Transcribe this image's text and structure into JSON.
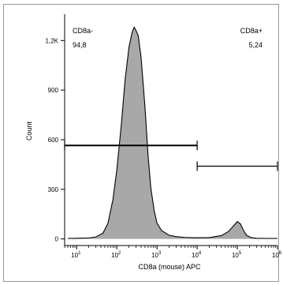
{
  "chart_data": {
    "type": "area",
    "xlabel": "CD8a (mouse) APC",
    "ylabel": "Count",
    "x_scale": "log",
    "xlim": [
      5,
      1000000
    ],
    "ylim": [
      -40,
      1340
    ],
    "x_ticks": [
      {
        "base": "10",
        "exp": "1",
        "value": 10
      },
      {
        "base": "10",
        "exp": "2",
        "value": 100
      },
      {
        "base": "10",
        "exp": "3",
        "value": 1000
      },
      {
        "base": "10",
        "exp": "4",
        "value": 10000
      },
      {
        "base": "10",
        "exp": "5",
        "value": 100000
      },
      {
        "base": "10",
        "exp": "6",
        "value": 1000000
      }
    ],
    "y_ticks": [
      {
        "label": "0",
        "value": 0
      },
      {
        "label": "300",
        "value": 300
      },
      {
        "label": "600",
        "value": 600
      },
      {
        "label": "900",
        "value": 900
      },
      {
        "label": "1,2K",
        "value": 1200
      }
    ],
    "series": [
      {
        "fill": "#a8a8a8",
        "stroke": "#000000",
        "points": [
          [
            6,
            3
          ],
          [
            10,
            4
          ],
          [
            20,
            6
          ],
          [
            30,
            12
          ],
          [
            45,
            35
          ],
          [
            60,
            95
          ],
          [
            80,
            240
          ],
          [
            100,
            420
          ],
          [
            130,
            700
          ],
          [
            160,
            960
          ],
          [
            200,
            1160
          ],
          [
            240,
            1250
          ],
          [
            270,
            1280
          ],
          [
            300,
            1260
          ],
          [
            340,
            1230
          ],
          [
            400,
            1100
          ],
          [
            500,
            800
          ],
          [
            600,
            500
          ],
          [
            700,
            310
          ],
          [
            850,
            170
          ],
          [
            1000,
            95
          ],
          [
            1300,
            50
          ],
          [
            2000,
            22
          ],
          [
            3000,
            14
          ],
          [
            5000,
            9
          ],
          [
            10000,
            7
          ],
          [
            20000,
            8
          ],
          [
            40000,
            20
          ],
          [
            60000,
            45
          ],
          [
            80000,
            78
          ],
          [
            100000,
            105
          ],
          [
            120000,
            90
          ],
          [
            140000,
            55
          ],
          [
            170000,
            22
          ],
          [
            220000,
            8
          ],
          [
            300000,
            4
          ],
          [
            600000,
            3
          ],
          [
            1000000,
            3
          ]
        ]
      }
    ],
    "gates": [
      {
        "name": "CD8a-",
        "value": "94,8",
        "x_range": [
          5,
          10000
        ],
        "y": 565
      },
      {
        "name": "CD8a+",
        "value": "5,24",
        "x_range": [
          10000,
          1000000
        ],
        "y": 440
      }
    ]
  }
}
